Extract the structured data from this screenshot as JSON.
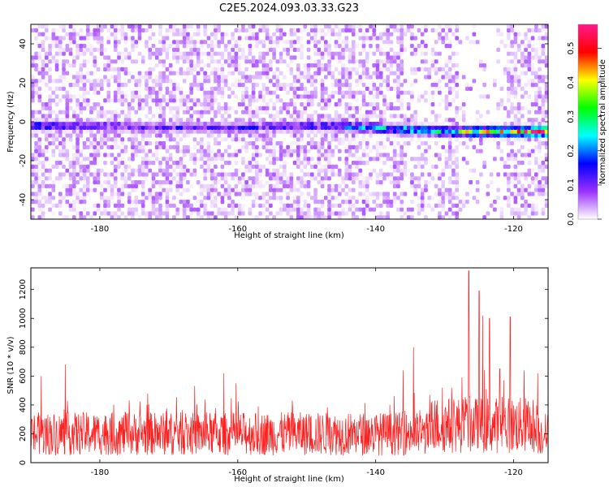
{
  "title": "C2E5.2024.093.03.33.G23",
  "chart_data": [
    {
      "type": "heatmap",
      "xlabel": "Height of straight line (km)",
      "ylabel": "Frequency (Hz)",
      "xlim": [
        -190,
        -115
      ],
      "ylim": [
        -50,
        50
      ],
      "xticks": [
        -180,
        -160,
        -140,
        -120
      ],
      "yticks": [
        -40,
        -20,
        0,
        20,
        40
      ],
      "colorbar": {
        "label": "Normalized spectral amplitude",
        "range": [
          0.0,
          0.57
        ],
        "ticks": [
          0.0,
          0.1,
          0.2,
          0.3,
          0.4,
          0.5
        ],
        "colors": [
          "#ffffff",
          "#9b30ff",
          "#0000ff",
          "#00ffff",
          "#00ff00",
          "#ffff00",
          "#ff0000",
          "#ff1a8c"
        ]
      },
      "signal_track": {
        "x": [
          -190,
          -180,
          -170,
          -160,
          -150,
          -140,
          -130,
          -125,
          -120,
          -116
        ],
        "frequency": [
          -2,
          -2,
          -3,
          -3,
          -2,
          -3,
          -5,
          -5,
          -5,
          -5
        ],
        "amplitude": [
          0.15,
          0.1,
          0.12,
          0.12,
          0.12,
          0.2,
          0.25,
          0.35,
          0.4,
          0.45
        ]
      },
      "grid": false
    },
    {
      "type": "line",
      "xlabel": "Height of straight line (km)",
      "ylabel": "SNR (10 * v/v)",
      "xlim": [
        -190,
        -115
      ],
      "ylim": [
        0,
        1350
      ],
      "xticks": [
        -180,
        -160,
        -140,
        -120
      ],
      "yticks": [
        0,
        200,
        400,
        600,
        800,
        1000,
        1200
      ],
      "line_color": "#ff2020",
      "baseline_mean": 200,
      "peaks": [
        {
          "x": -188.5,
          "y": 600
        },
        {
          "x": -185,
          "y": 680
        },
        {
          "x": -162,
          "y": 620
        },
        {
          "x": -136,
          "y": 640
        },
        {
          "x": -134.5,
          "y": 800
        },
        {
          "x": -129,
          "y": 520
        },
        {
          "x": -126.5,
          "y": 1330
        },
        {
          "x": -125,
          "y": 1190
        },
        {
          "x": -124.5,
          "y": 1020
        },
        {
          "x": -123.5,
          "y": 1000
        },
        {
          "x": -122,
          "y": 650
        },
        {
          "x": -120.5,
          "y": 1010
        },
        {
          "x": -118.5,
          "y": 640
        },
        {
          "x": -116.5,
          "y": 620
        }
      ],
      "grid": false
    }
  ]
}
